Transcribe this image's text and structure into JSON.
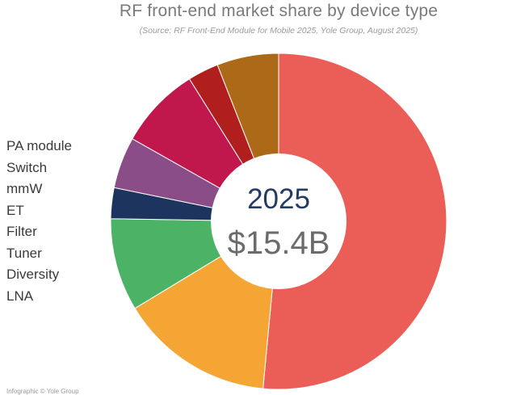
{
  "title": "RF front-end market share by device type",
  "subtitle": "(Source: RF Front-End Module for Mobile 2025, Yole Group, August 2025)",
  "center": {
    "year": "2025",
    "total": "$15.4B"
  },
  "footer": "Infographic © Yole Group",
  "chart_data": {
    "type": "pie",
    "variant": "donut",
    "title": "RF front-end market share by device type",
    "categories": [
      "PA module",
      "Switch",
      "mmW",
      "ET",
      "Filter",
      "Tuner",
      "Diversity",
      "LNA"
    ],
    "values": [
      52,
      15,
      9,
      3,
      5,
      8,
      3,
      6
    ],
    "colors": [
      "#EB5E58",
      "#F4A533",
      "#4CB266",
      "#1D355E",
      "#8A4D88",
      "#C0174D",
      "#B01E1E",
      "#AC6A18"
    ],
    "legend_position": "left"
  }
}
